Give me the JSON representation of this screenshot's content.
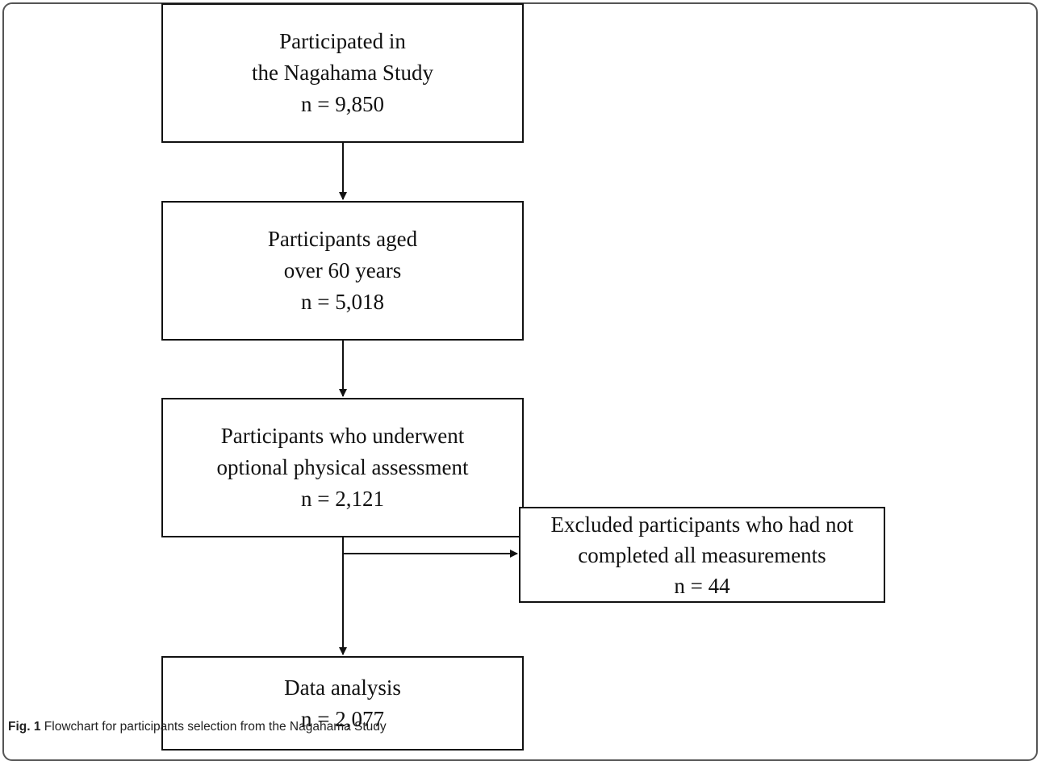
{
  "flowchart": {
    "boxes": [
      {
        "lines": [
          "Participated in",
          "the Nagahama Study"
        ],
        "count": "n = 9,850"
      },
      {
        "lines": [
          "Participants aged",
          "over 60 years"
        ],
        "count": "n = 5,018"
      },
      {
        "lines": [
          "Participants who underwent",
          "optional physical assessment"
        ],
        "count": "n = 2,121"
      },
      {
        "lines": [
          "Excluded participants who had not",
          "completed all measurements"
        ],
        "count": "n = 44"
      },
      {
        "lines": [
          "Data analysis"
        ],
        "count": "n = 2,077"
      }
    ]
  },
  "caption": {
    "label": "Fig. 1",
    "text": "Flowchart for participants selection from the Nagahama Study"
  }
}
